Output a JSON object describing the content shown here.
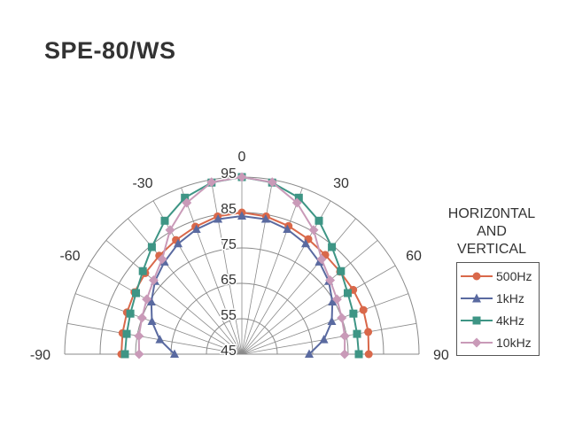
{
  "title": "SPE-80/WS",
  "side_title": [
    "HORIZ0NTAL",
    "AND",
    "VERTICAL"
  ],
  "chart_data": {
    "type": "polar-line",
    "title": "SPE-80/WS",
    "angle_range": [
      -90,
      90
    ],
    "angle_step": 10,
    "angle_labels": [
      {
        "angle": 0,
        "text": "0"
      },
      {
        "angle": -30,
        "text": "-30"
      },
      {
        "angle": 30,
        "text": "30"
      },
      {
        "angle": -60,
        "text": "-60"
      },
      {
        "angle": 60,
        "text": "60"
      },
      {
        "angle": -90,
        "text": "-90"
      },
      {
        "angle": 90,
        "text": "90"
      }
    ],
    "radial_range": [
      45,
      95
    ],
    "radial_ticks": [
      45,
      55,
      65,
      75,
      85,
      95
    ],
    "angles": [
      -90,
      -80,
      -70,
      -60,
      -50,
      -40,
      -30,
      -20,
      -10,
      0,
      10,
      20,
      30,
      40,
      50,
      60,
      70,
      80,
      90
    ],
    "series": [
      {
        "name": "500Hz",
        "color": "#d9684a",
        "marker": "circle",
        "values": [
          79,
          79.2,
          79.5,
          80,
          80.6,
          81.3,
          82.2,
          83.3,
          84.5,
          85,
          84.5,
          83.5,
          82.5,
          81.6,
          81.2,
          81.3,
          81.5,
          81.2,
          80.8
        ]
      },
      {
        "name": "1kHz",
        "color": "#5a6aa0",
        "marker": "triangle",
        "values": [
          64,
          68.5,
          72,
          74.5,
          77,
          79,
          81,
          82.5,
          83.7,
          84,
          83.7,
          82.5,
          81,
          79,
          77,
          74.5,
          72,
          68.5,
          64
        ]
      },
      {
        "name": "4kHz",
        "color": "#3e9585",
        "marker": "square",
        "values": [
          78,
          78,
          78.5,
          79.5,
          81.5,
          84.5,
          88.5,
          92,
          94.2,
          95,
          94.2,
          92,
          88.5,
          84.5,
          81.5,
          79.5,
          78.5,
          78,
          78
        ]
      },
      {
        "name": "10kHz",
        "color": "#c99ab8",
        "marker": "diamond",
        "values": [
          74,
          74.5,
          75,
          76,
          77.5,
          80,
          85.5,
          90.5,
          94.3,
          95,
          94.3,
          90.5,
          85.5,
          80,
          77.5,
          76,
          75,
          74.5,
          74
        ]
      }
    ],
    "legend_position": "right"
  }
}
